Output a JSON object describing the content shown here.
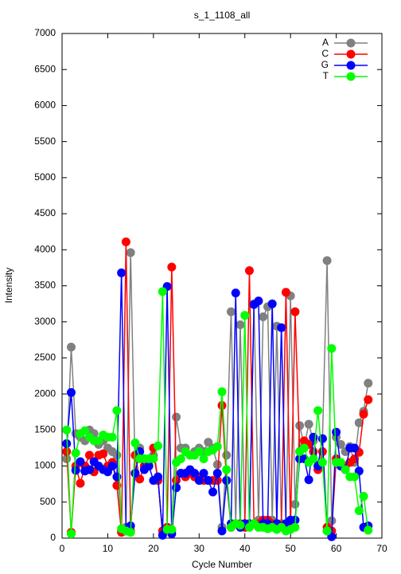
{
  "chart_data": {
    "type": "line",
    "title": "s_1_1108_all",
    "x_label": "Cycle Number",
    "y_label": "Intensity",
    "x": [
      1,
      2,
      3,
      4,
      5,
      6,
      7,
      8,
      9,
      10,
      11,
      12,
      13,
      14,
      15,
      16,
      17,
      18,
      19,
      20,
      21,
      22,
      23,
      24,
      25,
      26,
      27,
      28,
      29,
      30,
      31,
      32,
      33,
      34,
      35,
      36,
      37,
      38,
      39,
      40,
      41,
      42,
      43,
      44,
      45,
      46,
      47,
      48,
      49,
      50,
      51,
      52,
      53,
      54,
      55,
      56,
      57,
      58,
      59,
      60,
      61,
      62,
      63,
      64,
      65,
      66,
      67
    ],
    "series": [
      {
        "name": "A",
        "color": "#808080",
        "values": [
          1100,
          2650,
          1450,
          1400,
          1350,
          1500,
          1450,
          1300,
          1350,
          1250,
          1200,
          1150,
          100,
          150,
          3960,
          900,
          1250,
          1100,
          1100,
          1150,
          800,
          100,
          150,
          100,
          1680,
          1250,
          1250,
          1150,
          1200,
          1250,
          1200,
          1330,
          1250,
          1020,
          150,
          1150,
          3140,
          200,
          2960,
          200,
          200,
          3250,
          250,
          3070,
          3210,
          250,
          2940,
          200,
          200,
          3360,
          470,
          1560,
          1280,
          1580,
          1350,
          1000,
          1380,
          3850,
          240,
          1400,
          1300,
          1200,
          1270,
          1050,
          1600,
          1760,
          2150
        ]
      },
      {
        "name": "C",
        "color": "#ff0000",
        "values": [
          1200,
          80,
          1000,
          760,
          1000,
          1150,
          920,
          1150,
          1170,
          1000,
          1050,
          730,
          80,
          4110,
          100,
          1150,
          820,
          1000,
          1000,
          1250,
          800,
          100,
          150,
          3760,
          800,
          900,
          850,
          900,
          850,
          850,
          800,
          800,
          800,
          800,
          1840,
          800,
          150,
          200,
          200,
          150,
          3710,
          200,
          200,
          250,
          250,
          200,
          200,
          150,
          3410,
          150,
          3140,
          1200,
          1350,
          1300,
          1200,
          950,
          1200,
          150,
          100,
          1100,
          1000,
          1000,
          1050,
          1100,
          1190,
          1720,
          1920
        ]
      },
      {
        "name": "G",
        "color": "#0000ff",
        "values": [
          1310,
          2020,
          940,
          1060,
          930,
          950,
          1060,
          1000,
          950,
          920,
          1000,
          850,
          3680,
          100,
          170,
          900,
          1200,
          950,
          1000,
          800,
          850,
          40,
          3490,
          60,
          700,
          900,
          900,
          950,
          900,
          800,
          900,
          800,
          640,
          900,
          100,
          800,
          200,
          3400,
          150,
          200,
          200,
          3240,
          3290,
          200,
          200,
          3250,
          200,
          2920,
          200,
          250,
          250,
          1100,
          1100,
          810,
          1400,
          1000,
          1380,
          100,
          20,
          1470,
          1000,
          950,
          1250,
          1250,
          930,
          150,
          170
        ]
      },
      {
        "name": "T",
        "color": "#00ff00",
        "values": [
          1500,
          60,
          1180,
          1450,
          1490,
          1400,
          1350,
          1350,
          1430,
          1400,
          1400,
          1770,
          130,
          100,
          80,
          1320,
          1100,
          1100,
          1100,
          1100,
          1280,
          3420,
          120,
          120,
          1050,
          1100,
          1200,
          1150,
          1150,
          1200,
          1100,
          1200,
          1220,
          1270,
          2030,
          950,
          150,
          200,
          180,
          3090,
          150,
          200,
          150,
          150,
          130,
          150,
          120,
          150,
          100,
          120,
          150,
          1200,
          1250,
          1050,
          1100,
          1770,
          1050,
          100,
          2630,
          1050,
          1050,
          950,
          850,
          850,
          380,
          580,
          110
        ]
      }
    ],
    "xlim": [
      0,
      70
    ],
    "ylim": [
      0,
      7000
    ],
    "xticks": [
      0,
      10,
      20,
      30,
      40,
      50,
      60,
      70
    ],
    "yticks": [
      0,
      500,
      1000,
      1500,
      2000,
      2500,
      3000,
      3500,
      4000,
      4500,
      5000,
      5500,
      6000,
      6500,
      7000
    ],
    "legend": "top-right"
  }
}
